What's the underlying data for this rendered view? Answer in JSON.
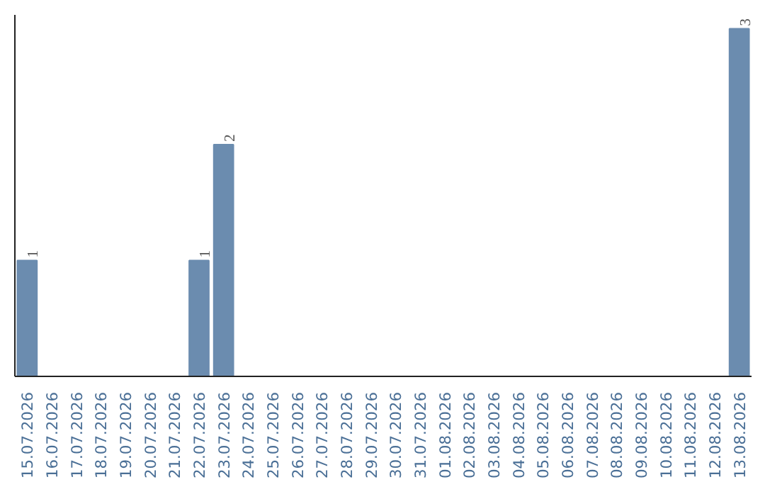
{
  "chart_data": {
    "type": "bar",
    "categories": [
      "15.07.2026",
      "16.07.2026",
      "17.07.2026",
      "18.07.2026",
      "19.07.2026",
      "20.07.2026",
      "21.07.2026",
      "22.07.2026",
      "23.07.2026",
      "24.07.2026",
      "25.07.2026",
      "26.07.2026",
      "27.07.2026",
      "28.07.2026",
      "29.07.2026",
      "30.07.2026",
      "31.07.2026",
      "01.08.2026",
      "02.08.2026",
      "03.08.2026",
      "04.08.2026",
      "05.08.2026",
      "06.08.2026",
      "07.08.2026",
      "08.08.2026",
      "09.08.2026",
      "10.08.2026",
      "11.08.2026",
      "12.08.2026",
      "13.08.2026"
    ],
    "values": [
      1,
      0,
      0,
      0,
      0,
      0,
      0,
      1,
      2,
      0,
      0,
      0,
      0,
      0,
      0,
      0,
      0,
      0,
      0,
      0,
      0,
      0,
      0,
      0,
      0,
      0,
      0,
      0,
      0,
      3
    ],
    "value_labels": [
      "1",
      null,
      null,
      null,
      null,
      null,
      null,
      "1",
      "2",
      null,
      null,
      null,
      null,
      null,
      null,
      null,
      null,
      null,
      null,
      null,
      null,
      null,
      null,
      null,
      null,
      null,
      null,
      null,
      null,
      "3"
    ],
    "color": "#6b8caf",
    "grid": false,
    "tick_labels": "x"
  }
}
